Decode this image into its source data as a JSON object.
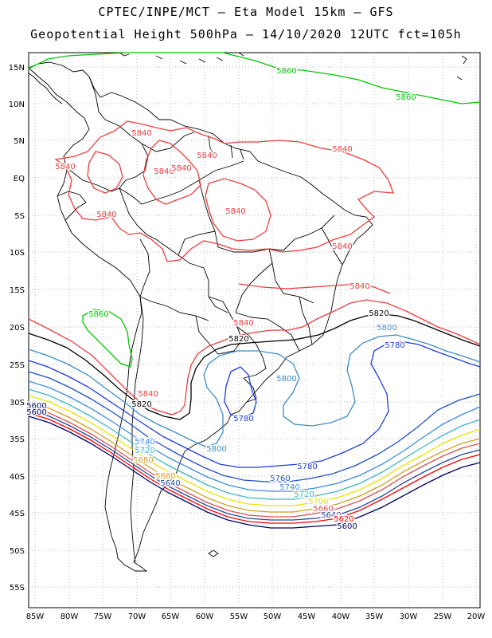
{
  "header": {
    "line1": "CPTEC/INPE/MCT –  Eta Model 15km – GFS",
    "line2": "Geopotential Height 500hPa – 14/10/2020 12UTC fct=105h"
  },
  "axes": {
    "lon_labels": [
      "85W",
      "80W",
      "75W",
      "70W",
      "65W",
      "60W",
      "55W",
      "50W",
      "45W",
      "40W",
      "35W",
      "30W",
      "25W",
      "20W"
    ],
    "lat_labels": [
      "15N",
      "10N",
      "5N",
      "EQ",
      "5S",
      "10S",
      "15S",
      "20S",
      "25S",
      "30S",
      "35S",
      "40S",
      "45S",
      "50S",
      "55S"
    ]
  },
  "colors": {
    "c5860": "#00c800",
    "c5840": "#ee3c3c",
    "c5820": "#000000",
    "c5800": "#3c8cc8",
    "c5780": "#1e3cdc",
    "c5760": "#1e50c8",
    "c5740": "#3c8ce6",
    "c5720": "#3cb4c8",
    "c5700": "#e6e600",
    "c5680": "#d2a028",
    "c5660": "#dc5050",
    "c5640": "#2846a0",
    "c5620": "#ff0000",
    "c5600": "#000064",
    "coast": "#000000",
    "grid": "#9a9a9a"
  },
  "contour_labels": [
    {
      "text": "5860",
      "color": "c5860"
    },
    {
      "text": "5860",
      "color": "c5860"
    },
    {
      "text": "5860",
      "color": "c5860"
    },
    {
      "text": "5840",
      "color": "c5840"
    },
    {
      "text": "5840",
      "color": "c5840"
    },
    {
      "text": "5840",
      "color": "c5840"
    },
    {
      "text": "5840",
      "color": "c5840"
    },
    {
      "text": "5840",
      "color": "c5840"
    },
    {
      "text": "5840",
      "color": "c5840"
    },
    {
      "text": "5840",
      "color": "c5840"
    },
    {
      "text": "5840",
      "color": "c5840"
    },
    {
      "text": "5840",
      "color": "c5840"
    },
    {
      "text": "5840",
      "color": "c5840"
    },
    {
      "text": "5840",
      "color": "c5840"
    },
    {
      "text": "5840",
      "color": "c5840"
    },
    {
      "text": "5820",
      "color": "c5820"
    },
    {
      "text": "5820",
      "color": "c5820"
    },
    {
      "text": "5820",
      "color": "c5820"
    },
    {
      "text": "5800",
      "color": "c5800"
    },
    {
      "text": "5800",
      "color": "c5800"
    },
    {
      "text": "5800",
      "color": "c5800"
    },
    {
      "text": "5780",
      "color": "c5780"
    },
    {
      "text": "5780",
      "color": "c5780"
    },
    {
      "text": "5780",
      "color": "c5780"
    },
    {
      "text": "5760",
      "color": "c5760"
    },
    {
      "text": "5740",
      "color": "c5740"
    },
    {
      "text": "5740",
      "color": "c5740"
    },
    {
      "text": "5720",
      "color": "c5720"
    },
    {
      "text": "5720",
      "color": "c5720"
    },
    {
      "text": "5700",
      "color": "c5700"
    },
    {
      "text": "5680",
      "color": "c5680"
    },
    {
      "text": "5660",
      "color": "c5660"
    },
    {
      "text": "5640",
      "color": "c5640"
    },
    {
      "text": "5640",
      "color": "c5640"
    },
    {
      "text": "5620",
      "color": "c5620"
    },
    {
      "text": "5600",
      "color": "c5600"
    },
    {
      "text": "5600",
      "color": "c5600"
    },
    {
      "text": "5600",
      "color": "c5600"
    },
    {
      "text": "5680",
      "color": "c5680"
    }
  ]
}
